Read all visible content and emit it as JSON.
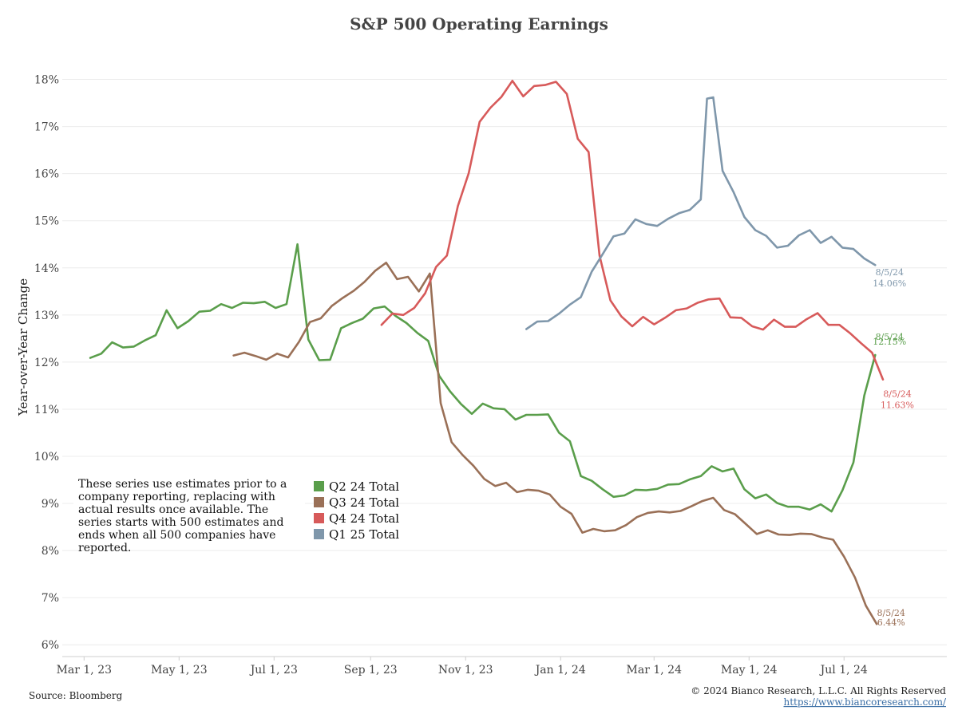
{
  "chart_data": {
    "type": "line",
    "title": "S&P 500 Operating Earnings",
    "xlabel": "",
    "ylabel": "Year-over-Year Change",
    "ylim": [
      5.75,
      18.5
    ],
    "y_ticks": [
      6,
      7,
      8,
      9,
      10,
      11,
      12,
      13,
      14,
      15,
      16,
      17,
      18
    ],
    "y_tick_labels": [
      "6%",
      "7%",
      "8%",
      "9%",
      "10%",
      "11%",
      "12%",
      "13%",
      "14%",
      "15%",
      "16%",
      "17%",
      "18%"
    ],
    "x_range": [
      "2023-02-15",
      "2024-09-05"
    ],
    "x_ticks": [
      "2023-03-01",
      "2023-05-01",
      "2023-07-01",
      "2023-09-01",
      "2023-11-01",
      "2024-01-01",
      "2024-03-01",
      "2024-05-01",
      "2024-07-01"
    ],
    "x_tick_labels": [
      "Mar 1, 23",
      "May 1, 23",
      "Jul 1, 23",
      "Sep 1, 23",
      "Nov 1, 23",
      "Jan 1, 24",
      "Mar 1, 24",
      "May 1, 24",
      "Jul 1, 24"
    ],
    "grid": true,
    "legend_position": "bottom-left",
    "note": "These series use estimates prior to a company reporting, replacing with actual results once available. The series starts with 500 estimates and ends when all 500 companies have reported.",
    "series": [
      {
        "name": "Q2 24 Total",
        "color": "#5a9e4b",
        "end_date_label": "8/5/24",
        "end_value_label": "12.15%",
        "points": [
          [
            "2023-03-05",
            12.09
          ],
          [
            "2023-03-12",
            12.18
          ],
          [
            "2023-03-19",
            12.42
          ],
          [
            "2023-03-26",
            12.31
          ],
          [
            "2023-04-02",
            12.33
          ],
          [
            "2023-04-09",
            12.46
          ],
          [
            "2023-04-16",
            12.57
          ],
          [
            "2023-04-23",
            13.1
          ],
          [
            "2023-04-30",
            12.72
          ],
          [
            "2023-05-07",
            12.87
          ],
          [
            "2023-05-14",
            13.07
          ],
          [
            "2023-05-21",
            13.09
          ],
          [
            "2023-05-28",
            13.23
          ],
          [
            "2023-06-04",
            13.15
          ],
          [
            "2023-06-11",
            13.26
          ],
          [
            "2023-06-18",
            13.25
          ],
          [
            "2023-06-25",
            13.28
          ],
          [
            "2023-07-02",
            13.15
          ],
          [
            "2023-07-09",
            13.23
          ],
          [
            "2023-07-16",
            14.5
          ],
          [
            "2023-07-23",
            12.48
          ],
          [
            "2023-07-30",
            12.04
          ],
          [
            "2023-08-06",
            12.05
          ],
          [
            "2023-08-13",
            12.72
          ],
          [
            "2023-08-20",
            12.83
          ],
          [
            "2023-08-27",
            12.92
          ],
          [
            "2023-09-03",
            13.14
          ],
          [
            "2023-09-10",
            13.18
          ],
          [
            "2023-09-17",
            12.98
          ],
          [
            "2023-09-24",
            12.83
          ],
          [
            "2023-10-01",
            12.62
          ],
          [
            "2023-10-08",
            12.45
          ],
          [
            "2023-10-15",
            11.71
          ],
          [
            "2023-10-22",
            11.38
          ],
          [
            "2023-10-29",
            11.11
          ],
          [
            "2023-11-05",
            10.9
          ],
          [
            "2023-11-12",
            11.12
          ],
          [
            "2023-11-19",
            11.02
          ],
          [
            "2023-11-26",
            11.0
          ],
          [
            "2023-12-03",
            10.78
          ],
          [
            "2023-12-10",
            10.88
          ],
          [
            "2023-12-17",
            10.88
          ],
          [
            "2023-12-24",
            10.89
          ],
          [
            "2023-12-31",
            10.5
          ],
          [
            "2024-01-07",
            10.32
          ],
          [
            "2024-01-14",
            9.58
          ],
          [
            "2024-01-21",
            9.48
          ],
          [
            "2024-01-28",
            9.3
          ],
          [
            "2024-02-04",
            9.14
          ],
          [
            "2024-02-11",
            9.17
          ],
          [
            "2024-02-18",
            9.29
          ],
          [
            "2024-02-25",
            9.28
          ],
          [
            "2024-03-03",
            9.31
          ],
          [
            "2024-03-10",
            9.4
          ],
          [
            "2024-03-17",
            9.41
          ],
          [
            "2024-03-24",
            9.51
          ],
          [
            "2024-03-31",
            9.58
          ],
          [
            "2024-04-07",
            9.79
          ],
          [
            "2024-04-14",
            9.68
          ],
          [
            "2024-04-21",
            9.74
          ],
          [
            "2024-04-28",
            9.3
          ],
          [
            "2024-05-05",
            9.11
          ],
          [
            "2024-05-12",
            9.19
          ],
          [
            "2024-05-19",
            9.01
          ],
          [
            "2024-05-26",
            8.93
          ],
          [
            "2024-06-02",
            8.93
          ],
          [
            "2024-06-09",
            8.87
          ],
          [
            "2024-06-16",
            8.98
          ],
          [
            "2024-06-23",
            8.83
          ],
          [
            "2024-06-30",
            9.28
          ],
          [
            "2024-07-07",
            9.87
          ],
          [
            "2024-07-14",
            11.29
          ],
          [
            "2024-07-21",
            12.15
          ]
        ]
      },
      {
        "name": "Q3 24 Total",
        "color": "#9a7057",
        "end_date_label": "8/5/24",
        "end_value_label": "6.44%",
        "points": [
          [
            "2023-06-05",
            12.14
          ],
          [
            "2023-06-12",
            12.2
          ],
          [
            "2023-06-19",
            12.13
          ],
          [
            "2023-06-26",
            12.05
          ],
          [
            "2023-07-03",
            12.18
          ],
          [
            "2023-07-10",
            12.1
          ],
          [
            "2023-07-17",
            12.43
          ],
          [
            "2023-07-24",
            12.85
          ],
          [
            "2023-07-31",
            12.93
          ],
          [
            "2023-08-07",
            13.19
          ],
          [
            "2023-08-14",
            13.36
          ],
          [
            "2023-08-21",
            13.51
          ],
          [
            "2023-08-28",
            13.7
          ],
          [
            "2023-09-04",
            13.94
          ],
          [
            "2023-09-11",
            14.11
          ],
          [
            "2023-09-18",
            13.76
          ],
          [
            "2023-09-25",
            13.81
          ],
          [
            "2023-10-02",
            13.5
          ],
          [
            "2023-10-09",
            13.88
          ],
          [
            "2023-10-16",
            11.13
          ],
          [
            "2023-10-23",
            10.3
          ],
          [
            "2023-10-30",
            10.03
          ],
          [
            "2023-11-06",
            9.8
          ],
          [
            "2023-11-13",
            9.52
          ],
          [
            "2023-11-20",
            9.37
          ],
          [
            "2023-11-27",
            9.44
          ],
          [
            "2023-12-04",
            9.24
          ],
          [
            "2023-12-11",
            9.29
          ],
          [
            "2023-12-18",
            9.27
          ],
          [
            "2023-12-25",
            9.19
          ],
          [
            "2024-01-01",
            8.93
          ],
          [
            "2024-01-08",
            8.78
          ],
          [
            "2024-01-15",
            8.38
          ],
          [
            "2024-01-22",
            8.46
          ],
          [
            "2024-01-29",
            8.41
          ],
          [
            "2024-02-05",
            8.43
          ],
          [
            "2024-02-12",
            8.54
          ],
          [
            "2024-02-19",
            8.71
          ],
          [
            "2024-02-26",
            8.8
          ],
          [
            "2024-03-04",
            8.83
          ],
          [
            "2024-03-11",
            8.81
          ],
          [
            "2024-03-18",
            8.84
          ],
          [
            "2024-03-25",
            8.94
          ],
          [
            "2024-04-01",
            9.05
          ],
          [
            "2024-04-08",
            9.12
          ],
          [
            "2024-04-15",
            8.86
          ],
          [
            "2024-04-22",
            8.77
          ],
          [
            "2024-04-29",
            8.56
          ],
          [
            "2024-05-06",
            8.35
          ],
          [
            "2024-05-13",
            8.43
          ],
          [
            "2024-05-20",
            8.34
          ],
          [
            "2024-05-27",
            8.33
          ],
          [
            "2024-06-03",
            8.36
          ],
          [
            "2024-06-10",
            8.35
          ],
          [
            "2024-06-17",
            8.28
          ],
          [
            "2024-06-24",
            8.23
          ],
          [
            "2024-07-01",
            7.87
          ],
          [
            "2024-07-08",
            7.43
          ],
          [
            "2024-07-15",
            6.83
          ],
          [
            "2024-07-22",
            6.44
          ]
        ]
      },
      {
        "name": "Q4 24 Total",
        "color": "#d75a5a",
        "end_date_label": "8/5/24",
        "end_value_label": "11.63%",
        "points": [
          [
            "2023-09-08",
            12.79
          ],
          [
            "2023-09-15",
            13.03
          ],
          [
            "2023-09-22",
            13.0
          ],
          [
            "2023-09-29",
            13.15
          ],
          [
            "2023-10-06",
            13.46
          ],
          [
            "2023-10-13",
            14.02
          ],
          [
            "2023-10-20",
            14.26
          ],
          [
            "2023-10-27",
            15.31
          ],
          [
            "2023-11-03",
            16.01
          ],
          [
            "2023-11-10",
            17.1
          ],
          [
            "2023-11-17",
            17.4
          ],
          [
            "2023-11-24",
            17.63
          ],
          [
            "2023-12-01",
            17.97
          ],
          [
            "2023-12-08",
            17.64
          ],
          [
            "2023-12-15",
            17.86
          ],
          [
            "2023-12-22",
            17.88
          ],
          [
            "2023-12-29",
            17.95
          ],
          [
            "2024-01-05",
            17.69
          ],
          [
            "2024-01-12",
            16.74
          ],
          [
            "2024-01-19",
            16.46
          ],
          [
            "2024-01-26",
            14.26
          ],
          [
            "2024-02-02",
            13.31
          ],
          [
            "2024-02-09",
            12.97
          ],
          [
            "2024-02-16",
            12.76
          ],
          [
            "2024-02-23",
            12.96
          ],
          [
            "2024-03-01",
            12.8
          ],
          [
            "2024-03-08",
            12.94
          ],
          [
            "2024-03-15",
            13.1
          ],
          [
            "2024-03-22",
            13.14
          ],
          [
            "2024-03-29",
            13.26
          ],
          [
            "2024-04-05",
            13.33
          ],
          [
            "2024-04-12",
            13.35
          ],
          [
            "2024-04-19",
            12.95
          ],
          [
            "2024-04-26",
            12.94
          ],
          [
            "2024-05-03",
            12.76
          ],
          [
            "2024-05-10",
            12.69
          ],
          [
            "2024-05-17",
            12.9
          ],
          [
            "2024-05-24",
            12.75
          ],
          [
            "2024-05-31",
            12.75
          ],
          [
            "2024-06-07",
            12.91
          ],
          [
            "2024-06-14",
            13.04
          ],
          [
            "2024-06-21",
            12.79
          ],
          [
            "2024-06-28",
            12.79
          ],
          [
            "2024-07-05",
            12.61
          ],
          [
            "2024-07-12",
            12.4
          ],
          [
            "2024-07-19",
            12.2
          ],
          [
            "2024-07-26",
            11.63
          ]
        ]
      },
      {
        "name": "Q1 25 Total",
        "color": "#7f97ab",
        "end_date_label": "8/5/24",
        "end_value_label": "14.06%",
        "points": [
          [
            "2023-12-10",
            12.7
          ],
          [
            "2023-12-17",
            12.86
          ],
          [
            "2023-12-24",
            12.87
          ],
          [
            "2023-12-31",
            13.03
          ],
          [
            "2024-01-07",
            13.22
          ],
          [
            "2024-01-14",
            13.38
          ],
          [
            "2024-01-21",
            13.92
          ],
          [
            "2024-01-28",
            14.29
          ],
          [
            "2024-02-04",
            14.67
          ],
          [
            "2024-02-11",
            14.73
          ],
          [
            "2024-02-18",
            15.03
          ],
          [
            "2024-02-25",
            14.93
          ],
          [
            "2024-03-03",
            14.89
          ],
          [
            "2024-03-10",
            15.04
          ],
          [
            "2024-03-17",
            15.16
          ],
          [
            "2024-03-24",
            15.23
          ],
          [
            "2024-03-31",
            15.45
          ],
          [
            "2024-04-04",
            17.59
          ],
          [
            "2024-04-08",
            17.62
          ],
          [
            "2024-04-14",
            16.06
          ],
          [
            "2024-04-21",
            15.61
          ],
          [
            "2024-04-28",
            15.08
          ],
          [
            "2024-05-05",
            14.8
          ],
          [
            "2024-05-12",
            14.68
          ],
          [
            "2024-05-19",
            14.43
          ],
          [
            "2024-05-26",
            14.47
          ],
          [
            "2024-06-02",
            14.69
          ],
          [
            "2024-06-09",
            14.8
          ],
          [
            "2024-06-16",
            14.53
          ],
          [
            "2024-06-23",
            14.66
          ],
          [
            "2024-06-30",
            14.43
          ],
          [
            "2024-07-07",
            14.4
          ],
          [
            "2024-07-14",
            14.2
          ],
          [
            "2024-07-21",
            14.06
          ]
        ]
      }
    ]
  },
  "footer": {
    "source": "Source: Bloomberg",
    "copyright": "© 2024 Bianco Research, L.L.C. All Rights Reserved",
    "url": "https://www.biancoresearch.com/"
  }
}
